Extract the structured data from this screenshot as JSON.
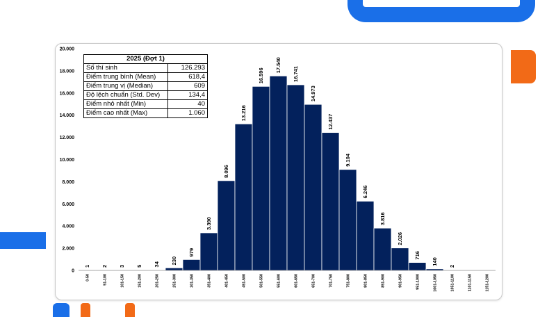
{
  "colors": {
    "bar": "#03215c",
    "accent_blue": "#1a6fe8",
    "accent_orange": "#f26a17"
  },
  "stats_table": {
    "title": "2025 (Đợt 1)",
    "rows": [
      {
        "label": "Số thí sinh",
        "value": "126.293"
      },
      {
        "label": "Điểm trung bình (Mean)",
        "value": "618,4"
      },
      {
        "label": "Điểm trung vị (Median)",
        "value": "609"
      },
      {
        "label": "Độ lệch chuẩn (Std. Dev)",
        "value": "134,4"
      },
      {
        "label": "Điểm nhỏ nhất (Min)",
        "value": "40"
      },
      {
        "label": "Điểm cao nhất (Max)",
        "value": "1.060"
      }
    ]
  },
  "chart_data": {
    "type": "bar",
    "categories": [
      "0-50",
      "51-100",
      "101-150",
      "151-200",
      "201-250",
      "251-300",
      "301-350",
      "351-400",
      "401-450",
      "451-500",
      "501-550",
      "551-600",
      "601-650",
      "651-700",
      "701-750",
      "751-800",
      "801-850",
      "851-900",
      "901-950",
      "951-1000",
      "1001-1050",
      "1051-1100",
      "1101-1150",
      "1151-1200"
    ],
    "values": [
      1,
      2,
      3,
      5,
      34,
      230,
      979,
      3390,
      8096,
      13216,
      16596,
      17540,
      16741,
      14973,
      12437,
      9104,
      6246,
      3816,
      2026,
      716,
      140,
      2,
      null,
      null
    ],
    "value_labels": [
      "1",
      "2",
      "3",
      "5",
      "34",
      "230",
      "979",
      "3.390",
      "8.096",
      "13.216",
      "16.596",
      "17.540",
      "16.741",
      "14.973",
      "12.437",
      "9.104",
      "6.246",
      "3.816",
      "2.026",
      "716",
      "140",
      "2",
      "",
      ""
    ],
    "yticks": [
      0,
      2000,
      4000,
      6000,
      8000,
      10000,
      12000,
      14000,
      16000,
      18000,
      20000
    ],
    "ytick_labels": [
      "0",
      "2.000",
      "4.000",
      "6.000",
      "8.000",
      "10.000",
      "12.000",
      "14.000",
      "16.000",
      "18.000",
      "20.000"
    ],
    "ylim": [
      0,
      20000
    ],
    "grid": false,
    "title": "",
    "xlabel": "",
    "ylabel": ""
  }
}
